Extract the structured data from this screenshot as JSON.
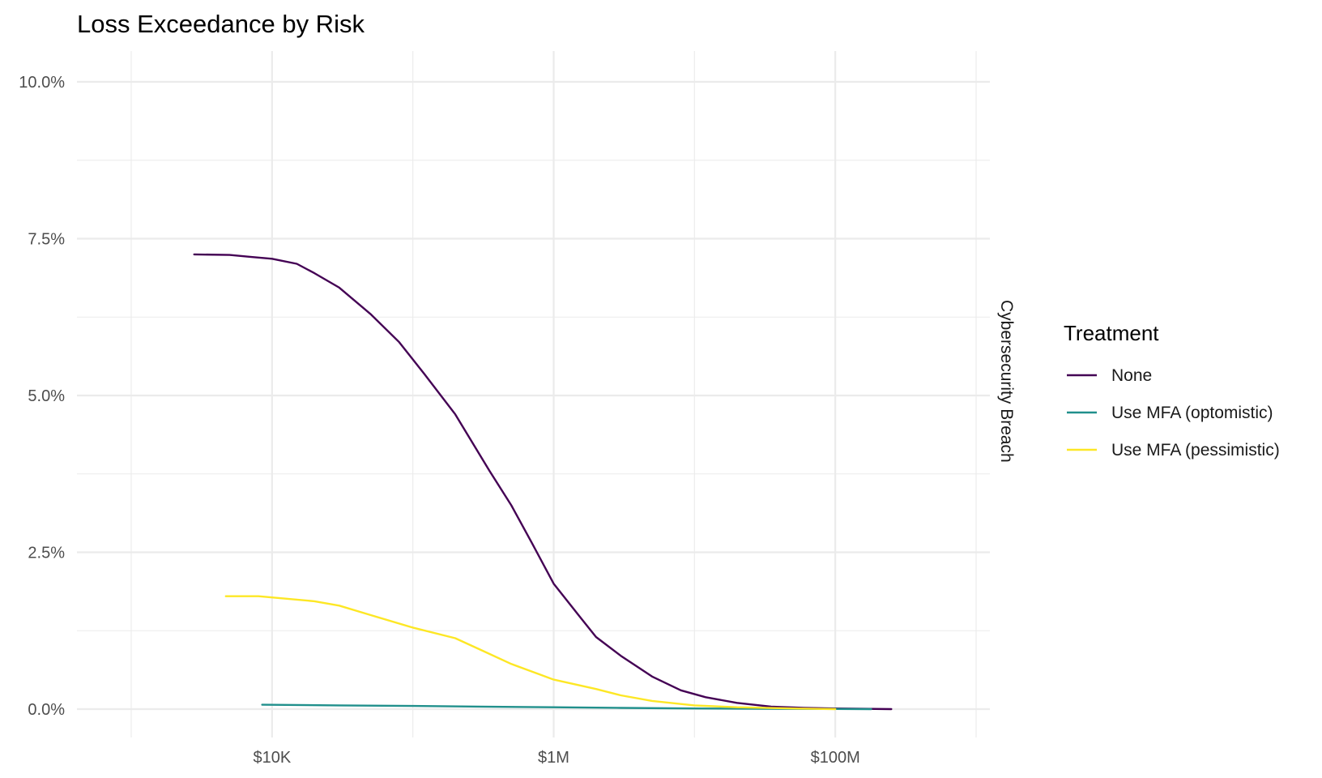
{
  "chart_data": {
    "type": "line",
    "title": "Loss Exceedance by Risk",
    "xlabel": "",
    "ylabel": "",
    "x_scale": "log10",
    "xlim": [
      1000,
      1000000000
    ],
    "ylim": [
      0,
      10
    ],
    "x_ticks": [
      {
        "value": 10000,
        "label": "$10K"
      },
      {
        "value": 1000000,
        "label": "$1M"
      },
      {
        "value": 100000000,
        "label": "$100M"
      }
    ],
    "y_ticks": [
      {
        "value": 0,
        "label": "0.0%"
      },
      {
        "value": 2.5,
        "label": "2.5%"
      },
      {
        "value": 5,
        "label": "5.0%"
      },
      {
        "value": 7.5,
        "label": "7.5%"
      },
      {
        "value": 10,
        "label": "10.0%"
      }
    ],
    "facet_label": "Cybersecurity Breach",
    "grid": true,
    "legend": {
      "title": "Treatment",
      "position": "right"
    },
    "series": [
      {
        "name": "None",
        "color": "#440154",
        "points": [
          [
            2800,
            7.25
          ],
          [
            5000,
            7.24
          ],
          [
            7000,
            7.21
          ],
          [
            10000,
            7.18
          ],
          [
            15000,
            7.1
          ],
          [
            20000,
            6.95
          ],
          [
            30000,
            6.72
          ],
          [
            50000,
            6.3
          ],
          [
            80000,
            5.85
          ],
          [
            120000,
            5.35
          ],
          [
            200000,
            4.7
          ],
          [
            350000,
            3.8
          ],
          [
            500000,
            3.25
          ],
          [
            700000,
            2.65
          ],
          [
            1000000,
            2.0
          ],
          [
            1500000,
            1.5
          ],
          [
            2000000,
            1.15
          ],
          [
            3000000,
            0.85
          ],
          [
            5000000,
            0.52
          ],
          [
            8000000,
            0.3
          ],
          [
            12000000,
            0.19
          ],
          [
            20000000,
            0.1
          ],
          [
            35000000,
            0.04
          ],
          [
            60000000,
            0.02
          ],
          [
            100000000,
            0.01
          ],
          [
            250000000,
            0.0
          ]
        ]
      },
      {
        "name": "Use MFA (optomistic)",
        "color": "#21908C",
        "points": [
          [
            8500,
            0.07
          ],
          [
            30000,
            0.06
          ],
          [
            100000,
            0.05
          ],
          [
            300000,
            0.04
          ],
          [
            1000000,
            0.03
          ],
          [
            3000000,
            0.02
          ],
          [
            10000000,
            0.01
          ],
          [
            30000000,
            0.005
          ],
          [
            100000000,
            0.002
          ],
          [
            180000000,
            0.0
          ]
        ]
      },
      {
        "name": "Use MFA (pessimistic)",
        "color": "#FDE725",
        "points": [
          [
            4700,
            1.8
          ],
          [
            8000,
            1.8
          ],
          [
            10000,
            1.78
          ],
          [
            20000,
            1.72
          ],
          [
            30000,
            1.65
          ],
          [
            50000,
            1.5
          ],
          [
            100000,
            1.3
          ],
          [
            200000,
            1.13
          ],
          [
            300000,
            0.95
          ],
          [
            500000,
            0.72
          ],
          [
            800000,
            0.55
          ],
          [
            1000000,
            0.47
          ],
          [
            2000000,
            0.32
          ],
          [
            3000000,
            0.22
          ],
          [
            5000000,
            0.13
          ],
          [
            10000000,
            0.06
          ],
          [
            20000000,
            0.03
          ],
          [
            50000000,
            0.01
          ],
          [
            100000000,
            0.0
          ]
        ]
      }
    ]
  }
}
